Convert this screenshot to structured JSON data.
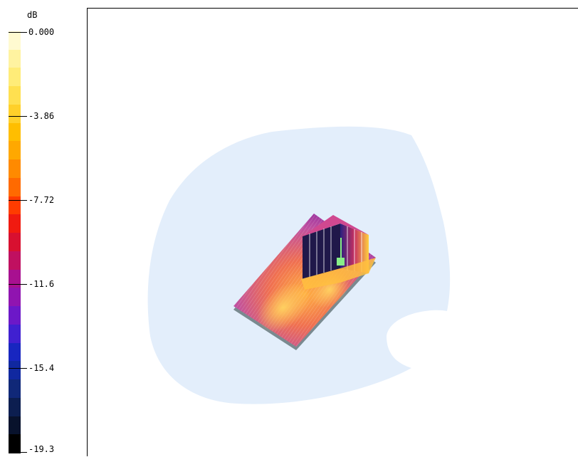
{
  "legend": {
    "unit": "dB",
    "ticks": [
      {
        "label": "0.000",
        "frac": 0.0
      },
      {
        "label": "-3.86",
        "frac": 0.2
      },
      {
        "label": "-7.72",
        "frac": 0.4
      },
      {
        "label": "-11.6",
        "frac": 0.6
      },
      {
        "label": "-15.4",
        "frac": 0.8
      },
      {
        "label": "-19.3",
        "frac": 1.0
      }
    ],
    "colors": [
      "#fffad0",
      "#fff3a0",
      "#ffec78",
      "#ffe050",
      "#ffd02a",
      "#ffbe00",
      "#ffa800",
      "#ff8a00",
      "#ff6a00",
      "#ff3c00",
      "#f01a10",
      "#d81030",
      "#c01060",
      "#a81090",
      "#9014b0",
      "#6c18c8",
      "#4020d0",
      "#1826c0",
      "#1028a0",
      "#102878",
      "#0c1e50",
      "#08122c",
      "#000000"
    ]
  },
  "scene": {
    "background_region_color": "#e3eefb",
    "board_color": "#c88ad0",
    "hotspot_color": "#ffc840",
    "marker_color": "#88ee88"
  }
}
